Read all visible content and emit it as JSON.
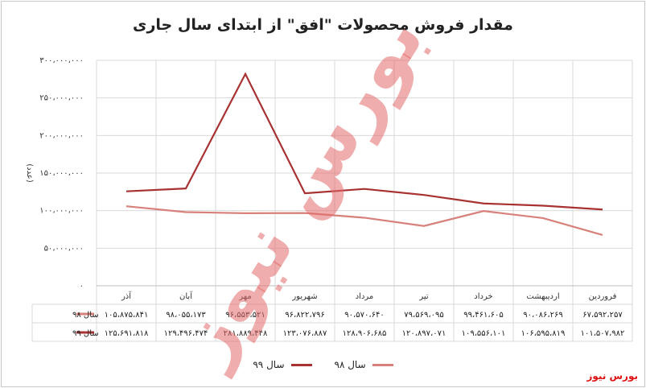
{
  "title": "مقدار فروش محصولات \"افق\" از ابتدای سال جاری",
  "brand": "بورس نیوز",
  "watermark": "بورس نیوز",
  "colors": {
    "series98": "#d8807a",
    "series99": "#a83232",
    "watermark": "#e46a6a"
  },
  "chart_data": {
    "type": "line",
    "title": "مقدار فروش محصولات \"افق\" از ابتدای سال جاری",
    "ylabel": "(عدد)",
    "xlabel": "",
    "ylim": [
      0,
      300000000
    ],
    "y_ticks": [
      0,
      50000000,
      100000000,
      150000000,
      200000000,
      250000000,
      300000000
    ],
    "y_tick_labels": [
      "۰",
      "۵۰،۰۰۰،۰۰۰",
      "۱۰۰،۰۰۰،۰۰۰",
      "۱۵۰،۰۰۰،۰۰۰",
      "۲۰۰،۰۰۰،۰۰۰",
      "۲۵۰،۰۰۰،۰۰۰",
      "۳۰۰،۰۰۰،۰۰۰"
    ],
    "grid": true,
    "legend_position": "bottom",
    "categories": [
      "فروردین",
      "اردیبهشت",
      "خرداد",
      "تیر",
      "مرداد",
      "شهریور",
      "مهر",
      "آبان",
      "آذر"
    ],
    "series": [
      {
        "name": "سال ۹۸",
        "values": [
          67592257,
          90086269,
          99461605,
          79569095,
          90570640,
          96822796,
          96553521,
          98055173,
          105875841
        ],
        "labels": [
          "۶۷،۵۹۲،۲۵۷",
          "۹۰،۰۸۶،۲۶۹",
          "۹۹،۴۶۱،۶۰۵",
          "۷۹،۵۶۹،۰۹۵",
          "۹۰،۵۷۰،۶۴۰",
          "۹۶،۸۲۲،۷۹۶",
          "۹۶،۵۵۳،۵۲۱",
          "۹۸،۰۵۵،۱۷۳",
          "۱۰۵،۸۷۵،۸۴۱"
        ]
      },
      {
        "name": "سال ۹۹",
        "values": [
          101507982,
          106595819,
          109556101,
          120897071,
          128906685,
          123076887,
          281889448,
          129496474,
          125691818
        ],
        "labels": [
          "۱۰۱،۵۰۷،۹۸۲",
          "۱۰۶،۵۹۵،۸۱۹",
          "۱۰۹،۵۵۶،۱۰۱",
          "۱۲۰،۸۹۷،۰۷۱",
          "۱۲۸،۹۰۶،۶۸۵",
          "۱۲۳،۰۷۶،۸۸۷",
          "۲۸۱،۸۸۹،۴۴۸",
          "۱۲۹،۴۹۶،۴۷۴",
          "۱۲۵،۶۹۱،۸۱۸"
        ]
      }
    ]
  }
}
